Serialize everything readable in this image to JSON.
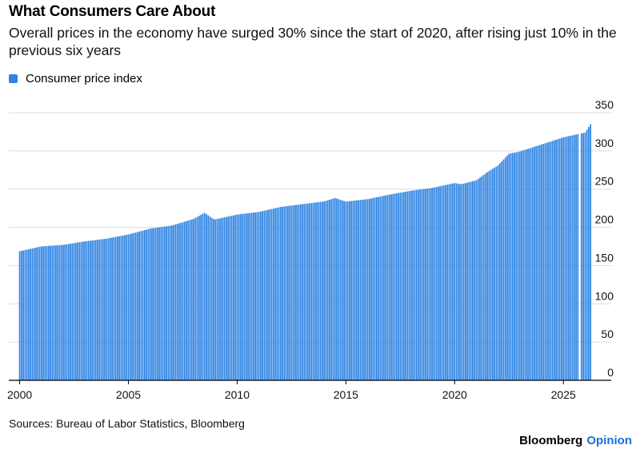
{
  "title": "What Consumers Care About",
  "subtitle": "Overall prices in the economy have surged 30% since the start of 2020, after rising just 10% in the previous six years",
  "source": "Sources: Bureau of Labor Statistics, Bloomberg",
  "brand": {
    "main": "Bloomberg",
    "opinion": "Opinion"
  },
  "colors": {
    "bar": "#2f84e3",
    "grid": "#dcdcdc",
    "axis": "#000000"
  },
  "chart_data": {
    "type": "bar",
    "series": [
      {
        "name": "Consumer price index",
        "anchors": [
          [
            2000.0,
            168.8
          ],
          [
            2001.0,
            175.1
          ],
          [
            2002.0,
            177.1
          ],
          [
            2003.0,
            181.7
          ],
          [
            2004.0,
            185.2
          ],
          [
            2005.0,
            190.7
          ],
          [
            2006.0,
            198.3
          ],
          [
            2007.0,
            202.4
          ],
          [
            2008.0,
            211.1
          ],
          [
            2008.5,
            219.0
          ],
          [
            2008.95,
            210.2
          ],
          [
            2010.0,
            216.7
          ],
          [
            2011.0,
            220.2
          ],
          [
            2012.0,
            226.7
          ],
          [
            2013.0,
            230.3
          ],
          [
            2014.0,
            233.9
          ],
          [
            2014.5,
            238.3
          ],
          [
            2015.0,
            233.7
          ],
          [
            2016.0,
            236.9
          ],
          [
            2017.0,
            242.8
          ],
          [
            2018.0,
            247.9
          ],
          [
            2019.0,
            251.7
          ],
          [
            2020.0,
            257.9
          ],
          [
            2020.3,
            256.4
          ],
          [
            2021.0,
            261.6
          ],
          [
            2021.5,
            272.0
          ],
          [
            2022.0,
            281.1
          ],
          [
            2022.5,
            296.3
          ],
          [
            2023.0,
            299.2
          ],
          [
            2024.0,
            308.4
          ],
          [
            2025.0,
            317.7
          ],
          [
            2026.0,
            324.0
          ],
          [
            2026.3,
            337.0
          ]
        ]
      }
    ],
    "x_range": [
      1999.5,
      2027.2
    ],
    "xticks": [
      2000,
      2005,
      2010,
      2015,
      2020,
      2025
    ],
    "ylim": [
      0,
      350
    ],
    "yticks": [
      0,
      50,
      100,
      150,
      200,
      250,
      300,
      350
    ],
    "y_axis_side": "right",
    "grid": true,
    "legend_position": "top-left",
    "gap_x": 2025.75
  }
}
